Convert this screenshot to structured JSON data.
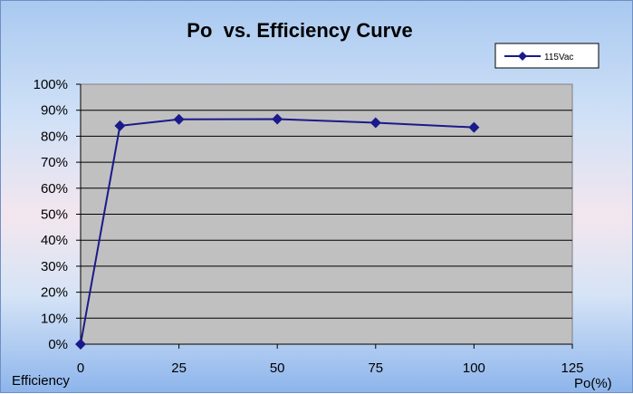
{
  "chart_data": {
    "type": "line",
    "title": "Po  vs. Efficiency Curve",
    "xlabel": "Po(%)",
    "ylabel": "Efficiency",
    "xlim": [
      0,
      125
    ],
    "ylim": [
      0,
      100
    ],
    "x_ticks": [
      0,
      25,
      50,
      75,
      100,
      125
    ],
    "y_ticks": [
      "0%",
      "10%",
      "20%",
      "30%",
      "40%",
      "50%",
      "60%",
      "70%",
      "80%",
      "90%",
      "100%"
    ],
    "grid": true,
    "legend_position": "top-right",
    "plot_background": "#c0c0c0",
    "line_color": "#1a1a8c",
    "series": [
      {
        "name": "115Vac",
        "x": [
          0,
          10,
          25,
          50,
          75,
          100
        ],
        "y": [
          0,
          84,
          86.5,
          86.6,
          85.2,
          83.4
        ]
      }
    ]
  }
}
